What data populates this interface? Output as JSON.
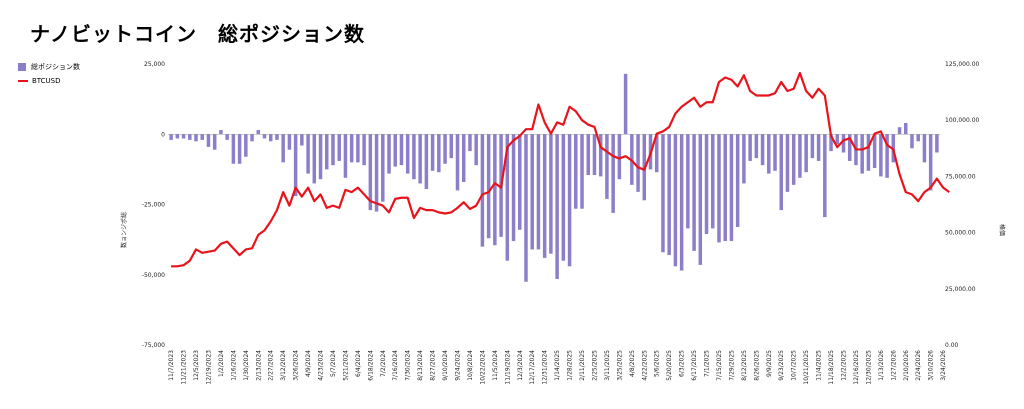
{
  "title": "ナノビットコイン　総ポジション数",
  "chart_data": {
    "type": "bar+line",
    "title": "ナノビットコイン　総ポジション数",
    "legend": [
      "総ポジション数",
      "BTCUSD"
    ],
    "legend_position": "top-left",
    "y_left_label": "数ョンジポ総",
    "y_right_label": "格価",
    "y_left_ticks": [
      "25,000",
      "0",
      "-25,000",
      "-50,000",
      "-75,000"
    ],
    "y_right_ticks": [
      "125,000.00",
      "100,000.00",
      "75,000.00",
      "50,000.00",
      "25,000.00",
      "0.00"
    ],
    "y_left_range": [
      -75000,
      25000
    ],
    "y_right_range": [
      0,
      125000
    ],
    "x_tick_labels": [
      "11/7/2023",
      "11/21/2023",
      "12/5/2023",
      "12/19/2023",
      "1/2/2024",
      "1/16/2024",
      "1/30/2024",
      "2/13/2024",
      "2/27/2024",
      "3/12/2024",
      "3/26/2024",
      "4/9/2024",
      "4/23/2024",
      "5/7/2024",
      "5/21/2024",
      "6/4/2024",
      "6/18/2024",
      "7/2/2024",
      "7/16/2024",
      "7/30/2024",
      "8/13/2024",
      "8/27/2024",
      "9/10/2024",
      "9/24/2024",
      "10/8/2024",
      "10/22/2024",
      "11/5/2024",
      "11/19/2024",
      "12/3/2024",
      "12/17/2024",
      "12/31/2024",
      "1/14/2025",
      "1/28/2025",
      "2/11/2025",
      "2/25/2025",
      "3/11/2025",
      "3/25/2025",
      "4/8/2025",
      "4/22/2025",
      "5/6/2025",
      "5/20/2025",
      "6/3/2025",
      "6/17/2025",
      "7/1/2025",
      "7/15/2025",
      "7/29/2025",
      "8/12/2025",
      "8/26/2025",
      "9/9/2025",
      "9/23/2025",
      "10/7/2025",
      "10/21/2025",
      "11/4/2025",
      "11/18/2025",
      "12/2/2025",
      "12/16/2025",
      "12/30/2025",
      "1/13/2026",
      "1/27/2026",
      "2/10/2026",
      "2/24/2026",
      "3/10/2026",
      "3/24/2026"
    ],
    "series": [
      {
        "name": "総ポジション数",
        "type": "bar",
        "color": "#8c7ec8",
        "values": [
          -2000,
          -1500,
          -1500,
          -2000,
          -2500,
          -2000,
          -4500,
          -5500,
          1500,
          -2000,
          -10500,
          -10500,
          -8000,
          -2500,
          1500,
          -1500,
          -2500,
          -2000,
          -10000,
          -5500,
          -22000,
          -4000,
          -14000,
          -17500,
          -16000,
          -12500,
          -11000,
          -9500,
          -15500,
          -10000,
          -10000,
          -11000,
          -27000,
          -27500,
          -24000,
          -14000,
          -11500,
          -11000,
          -14000,
          -16000,
          -17500,
          -19500,
          -13000,
          -13500,
          -10500,
          -8500,
          -20000,
          -17000,
          -6000,
          -11000,
          -40000,
          -37000,
          -39500,
          -36500,
          -45000,
          -38000,
          -34000,
          -52500,
          -41000,
          -41000,
          -44000,
          -42500,
          -51500,
          -45000,
          -47000,
          -26500,
          -26500,
          -14500,
          -14500,
          -15000,
          -23000,
          -28000,
          -16000,
          21500,
          -18000,
          -20500,
          -23500,
          -12500,
          -13500,
          -42000,
          -43000,
          -47000,
          -48500,
          -33500,
          -41500,
          -46500,
          -35500,
          -33500,
          -38500,
          -38000,
          -38000,
          -33000,
          -17500,
          -9500,
          -8500,
          -11000,
          -14000,
          -13000,
          -27000,
          -20500,
          -18000,
          -15500,
          -13500,
          -8500,
          -9500,
          -29500,
          -6000,
          -3500,
          -6500,
          -9500,
          -11000,
          -14000,
          -13000,
          -12000,
          -15000,
          -15500,
          -10000,
          2500,
          4000,
          -5000,
          -2500,
          -10000,
          -20000,
          -6500
        ],
        "ylim": [
          -75000,
          25000
        ]
      },
      {
        "name": "BTCUSD",
        "type": "line",
        "color": "#e8141c",
        "values": [
          35000,
          35000,
          35500,
          37500,
          42500,
          41000,
          41500,
          42000,
          45000,
          46000,
          43000,
          40000,
          42500,
          43000,
          49000,
          51000,
          55000,
          60000,
          68000,
          62000,
          70000,
          66000,
          70000,
          64000,
          67000,
          61000,
          62000,
          61000,
          69000,
          68000,
          70000,
          67000,
          64000,
          63000,
          62000,
          59000,
          65000,
          65500,
          65500,
          56500,
          61000,
          60000,
          60000,
          59000,
          58500,
          59000,
          61000,
          63500,
          60500,
          62000,
          67000,
          68000,
          72000,
          70000,
          88000,
          91000,
          93000,
          96000,
          96000,
          107000,
          99000,
          94000,
          99000,
          98000,
          106000,
          104000,
          100000,
          98000,
          97000,
          88000,
          86000,
          84000,
          83000,
          84000,
          82000,
          79000,
          78000,
          85000,
          94000,
          95000,
          97000,
          103000,
          106000,
          108000,
          110000,
          106000,
          108000,
          108000,
          117000,
          119000,
          118000,
          115000,
          120000,
          113000,
          111000,
          111000,
          111000,
          112000,
          117000,
          113000,
          114000,
          121000,
          113000,
          110000,
          114000,
          111000,
          93000,
          88000,
          91000,
          92000,
          87000,
          87000,
          88000,
          94000,
          95000,
          89000,
          87000,
          76000,
          68000,
          67000,
          64000,
          68000,
          70000,
          74000,
          70000,
          68000
        ],
        "ylim": [
          0,
          125000
        ]
      }
    ],
    "grid": false
  }
}
